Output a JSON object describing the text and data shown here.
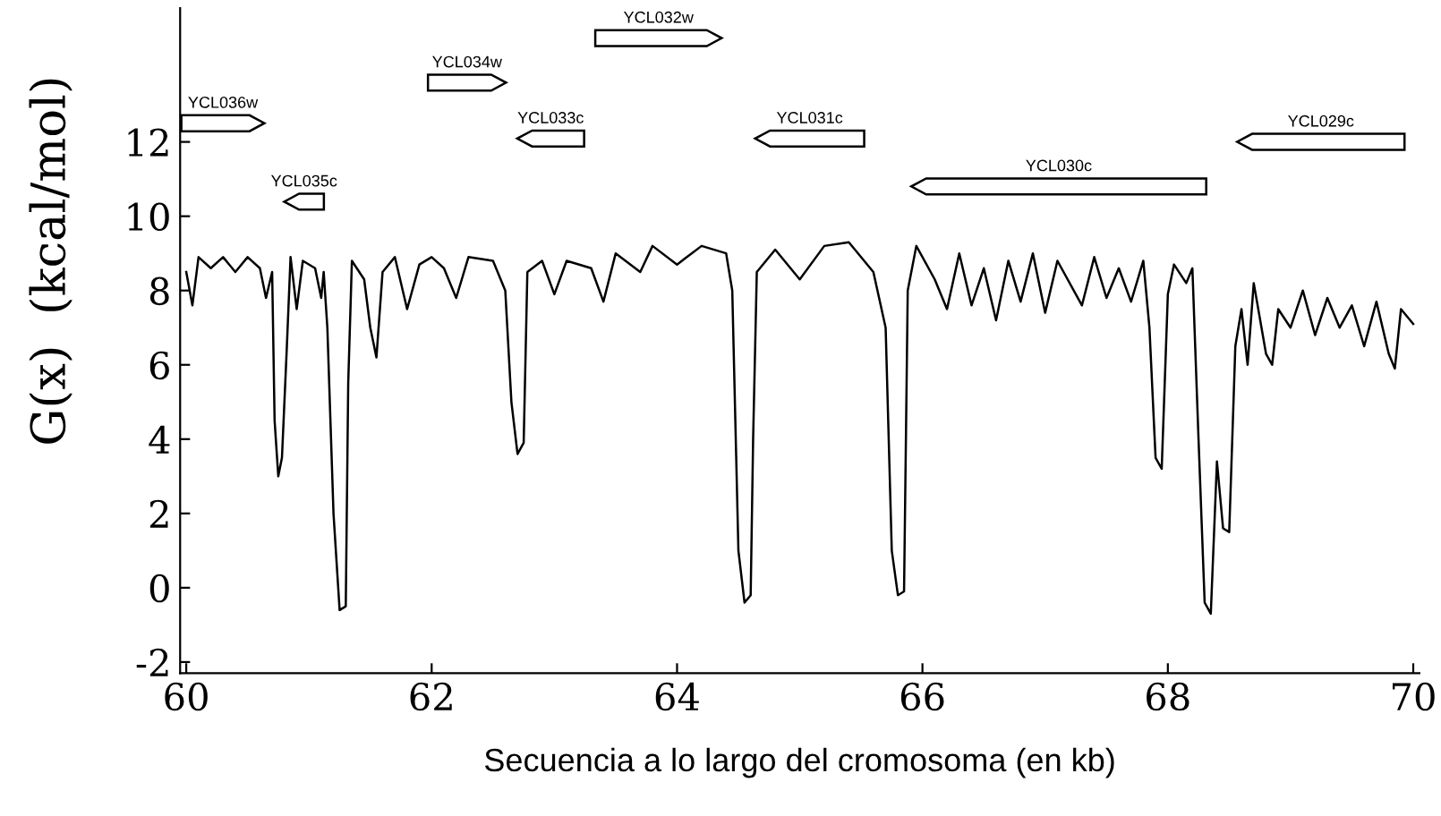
{
  "chart_data": {
    "type": "line",
    "xlabel": "Secuencia a lo largo del cromosoma (en kb)",
    "ylabel": "G(x)  (kcal/mol)",
    "xlim": [
      59.95,
      70.05
    ],
    "ylim": [
      -2.3,
      15.6
    ],
    "xticks": [
      60,
      62,
      64,
      66,
      68,
      70
    ],
    "yticks": [
      -2,
      0,
      2,
      4,
      6,
      8,
      10,
      12
    ],
    "grid": false,
    "legend": false,
    "marker": "none",
    "line_style": "solid",
    "series": [
      {
        "color": "#000000",
        "x": [
          60.0,
          60.05,
          60.1,
          60.2,
          60.3,
          60.4,
          60.5,
          60.6,
          60.65,
          60.7,
          60.72,
          60.75,
          60.78,
          60.82,
          60.85,
          60.9,
          60.95,
          61.05,
          61.1,
          61.12,
          61.15,
          61.2,
          61.25,
          61.3,
          61.32,
          61.35,
          61.45,
          61.5,
          61.55,
          61.6,
          61.7,
          61.8,
          61.9,
          62.0,
          62.1,
          62.2,
          62.3,
          62.5,
          62.6,
          62.65,
          62.7,
          62.75,
          62.78,
          62.9,
          63.0,
          63.1,
          63.3,
          63.4,
          63.5,
          63.7,
          63.8,
          64.0,
          64.2,
          64.4,
          64.45,
          64.5,
          64.55,
          64.6,
          64.62,
          64.65,
          64.8,
          65.0,
          65.2,
          65.4,
          65.6,
          65.7,
          65.75,
          65.8,
          65.85,
          65.88,
          65.95,
          66.1,
          66.2,
          66.3,
          66.4,
          66.5,
          66.6,
          66.7,
          66.8,
          66.9,
          67.0,
          67.1,
          67.3,
          67.4,
          67.5,
          67.6,
          67.7,
          67.8,
          67.85,
          67.9,
          67.95,
          68.0,
          68.05,
          68.15,
          68.2,
          68.25,
          68.3,
          68.35,
          68.4,
          68.45,
          68.5,
          68.55,
          68.6,
          68.65,
          68.7,
          68.8,
          68.85,
          68.9,
          69.0,
          69.1,
          69.2,
          69.3,
          69.4,
          69.5,
          69.6,
          69.7,
          69.8,
          69.85,
          69.9,
          70.0
        ],
        "values": [
          8.5,
          7.6,
          8.9,
          8.6,
          8.9,
          8.5,
          8.9,
          8.6,
          7.8,
          8.5,
          4.5,
          3.0,
          3.5,
          6.5,
          8.9,
          7.5,
          8.8,
          8.6,
          7.8,
          8.5,
          7.0,
          2.0,
          -0.6,
          -0.5,
          5.5,
          8.8,
          8.3,
          7.0,
          6.2,
          8.5,
          8.9,
          7.5,
          8.7,
          8.9,
          8.6,
          7.8,
          8.9,
          8.8,
          8.0,
          5.0,
          3.6,
          3.9,
          8.5,
          8.8,
          7.9,
          8.8,
          8.6,
          7.7,
          9.0,
          8.5,
          9.2,
          8.7,
          9.2,
          9.0,
          8.0,
          1.0,
          -0.4,
          -0.2,
          4.0,
          8.5,
          9.1,
          8.3,
          9.2,
          9.3,
          8.5,
          7.0,
          1.0,
          -0.2,
          -0.1,
          8.0,
          9.2,
          8.3,
          7.5,
          9.0,
          7.6,
          8.6,
          7.2,
          8.8,
          7.7,
          9.0,
          7.4,
          8.8,
          7.6,
          8.9,
          7.8,
          8.6,
          7.7,
          8.8,
          7.0,
          3.5,
          3.2,
          7.9,
          8.7,
          8.2,
          8.6,
          4.0,
          -0.4,
          -0.7,
          3.4,
          1.6,
          1.5,
          6.5,
          7.5,
          6.0,
          8.2,
          6.3,
          6.0,
          7.5,
          7.0,
          8.0,
          6.8,
          7.8,
          7.0,
          7.6,
          6.5,
          7.7,
          6.3,
          5.9,
          7.5,
          7.1
        ]
      }
    ],
    "annotations": [
      "YCL036w",
      "YCL035c",
      "YCL034w",
      "YCL033c",
      "YCL032w",
      "YCL031c",
      "YCL030c",
      "YCL029c"
    ]
  }
}
